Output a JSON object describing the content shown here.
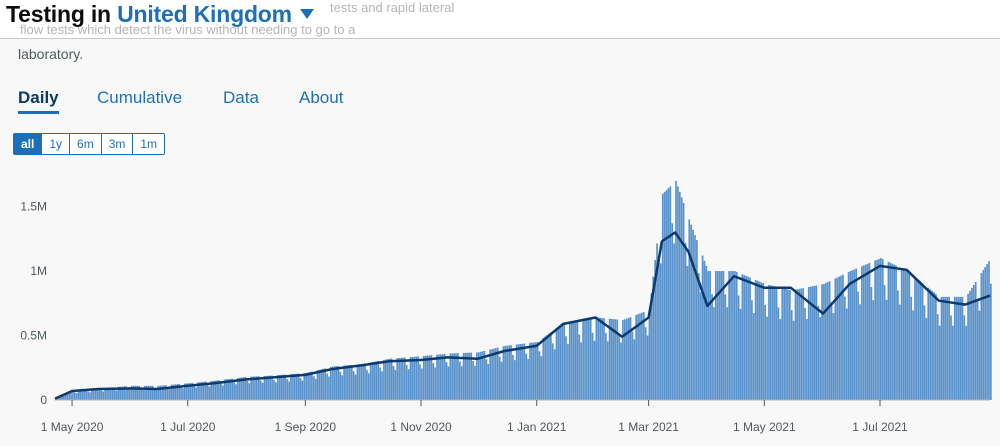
{
  "header": {
    "title_prefix": "Testing in",
    "area_name": "United Kingdom",
    "faded_line_1": "tests and rapid lateral",
    "faded_line_2": "flow tests which detect the virus without needing to go to a"
  },
  "description_tail": "laboratory.",
  "tabs": [
    {
      "label": "Daily",
      "active": true
    },
    {
      "label": "Cumulative",
      "active": false
    },
    {
      "label": "Data",
      "active": false
    },
    {
      "label": "About",
      "active": false
    }
  ],
  "ranges": [
    {
      "label": "all",
      "active": true
    },
    {
      "label": "1y",
      "active": false
    },
    {
      "label": "6m",
      "active": false
    },
    {
      "label": "3m",
      "active": false
    },
    {
      "label": "1m",
      "active": false
    }
  ],
  "colors": {
    "bars": "#5a93cc",
    "line": "#0d3a6e",
    "accent": "#1d70b8"
  },
  "chart_data": {
    "type": "bar",
    "title": "",
    "xlabel": "",
    "ylabel": "",
    "x_ticks": [
      "1 May 2020",
      "1 Jul 2020",
      "1 Sep 2020",
      "1 Nov 2020",
      "1 Jan 2021",
      "1 Mar 2021",
      "1 May 2021",
      "1 Jul 2021"
    ],
    "y_ticks": [
      "0",
      "0.5M",
      "1M",
      "1.5M"
    ],
    "y_tick_values": [
      0,
      500000,
      1000000,
      1500000
    ],
    "ylim": [
      0,
      1900000
    ],
    "x_range": [
      "2020-04-22",
      "2021-08-28"
    ],
    "grid": false,
    "series": [
      {
        "type": "bar",
        "values_description": "daily tests",
        "points": [
          [
            "2020-04-22",
            20000
          ],
          [
            "2020-05-01",
            70000
          ],
          [
            "2020-05-15",
            90000
          ],
          [
            "2020-06-01",
            110000
          ],
          [
            "2020-06-15",
            110000
          ],
          [
            "2020-07-01",
            130000
          ],
          [
            "2020-07-15",
            150000
          ],
          [
            "2020-08-01",
            180000
          ],
          [
            "2020-08-15",
            190000
          ],
          [
            "2020-09-01",
            210000
          ],
          [
            "2020-09-15",
            260000
          ],
          [
            "2020-10-01",
            280000
          ],
          [
            "2020-10-15",
            320000
          ],
          [
            "2020-11-01",
            340000
          ],
          [
            "2020-11-15",
            360000
          ],
          [
            "2020-12-01",
            370000
          ],
          [
            "2020-12-15",
            420000
          ],
          [
            "2021-01-01",
            450000
          ],
          [
            "2021-01-15",
            600000
          ],
          [
            "2021-02-01",
            640000
          ],
          [
            "2021-02-15",
            620000
          ],
          [
            "2021-03-01",
            700000
          ],
          [
            "2021-03-08",
            1600000
          ],
          [
            "2021-03-15",
            1700000
          ],
          [
            "2021-03-22",
            1400000
          ],
          [
            "2021-04-01",
            1000000
          ],
          [
            "2021-04-15",
            1000000
          ],
          [
            "2021-05-01",
            900000
          ],
          [
            "2021-05-15",
            850000
          ],
          [
            "2021-06-01",
            900000
          ],
          [
            "2021-06-15",
            1000000
          ],
          [
            "2021-07-01",
            1100000
          ],
          [
            "2021-07-15",
            1000000
          ],
          [
            "2021-08-01",
            800000
          ],
          [
            "2021-08-15",
            800000
          ],
          [
            "2021-08-28",
            1100000
          ]
        ]
      },
      {
        "type": "line",
        "values_description": "7-day average",
        "points": [
          [
            "2020-04-22",
            10000
          ],
          [
            "2020-05-01",
            70000
          ],
          [
            "2020-05-15",
            85000
          ],
          [
            "2020-06-01",
            90000
          ],
          [
            "2020-06-15",
            85000
          ],
          [
            "2020-07-01",
            110000
          ],
          [
            "2020-07-15",
            130000
          ],
          [
            "2020-08-01",
            160000
          ],
          [
            "2020-08-15",
            175000
          ],
          [
            "2020-09-01",
            195000
          ],
          [
            "2020-09-15",
            240000
          ],
          [
            "2020-10-01",
            270000
          ],
          [
            "2020-10-15",
            300000
          ],
          [
            "2020-11-01",
            310000
          ],
          [
            "2020-11-15",
            330000
          ],
          [
            "2020-12-01",
            320000
          ],
          [
            "2020-12-15",
            380000
          ],
          [
            "2021-01-01",
            420000
          ],
          [
            "2021-01-15",
            590000
          ],
          [
            "2021-02-01",
            640000
          ],
          [
            "2021-02-15",
            490000
          ],
          [
            "2021-03-01",
            640000
          ],
          [
            "2021-03-08",
            1230000
          ],
          [
            "2021-03-15",
            1300000
          ],
          [
            "2021-03-22",
            1150000
          ],
          [
            "2021-04-01",
            730000
          ],
          [
            "2021-04-15",
            960000
          ],
          [
            "2021-05-01",
            870000
          ],
          [
            "2021-05-15",
            870000
          ],
          [
            "2021-06-01",
            670000
          ],
          [
            "2021-06-15",
            900000
          ],
          [
            "2021-07-01",
            1040000
          ],
          [
            "2021-07-15",
            1010000
          ],
          [
            "2021-08-01",
            770000
          ],
          [
            "2021-08-15",
            740000
          ],
          [
            "2021-08-28",
            810000
          ]
        ]
      }
    ]
  }
}
